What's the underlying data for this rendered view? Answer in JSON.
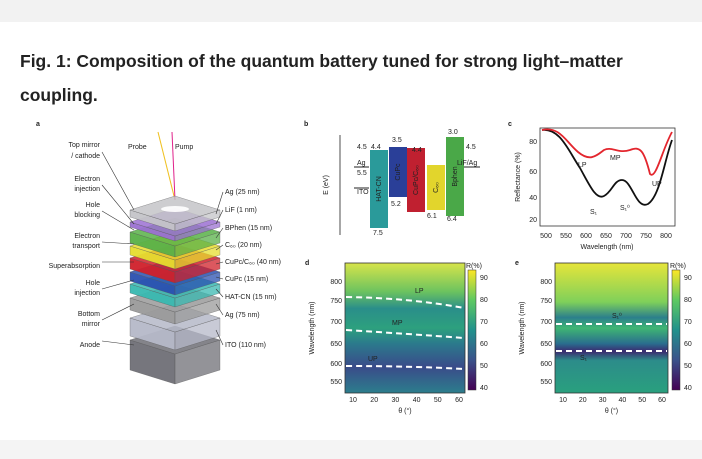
{
  "caption": {
    "title": "Fig. 1: Composition of the quantum battery tuned for strong light–matter coupling."
  },
  "panel_a": {
    "label": "a",
    "probe": "Probe",
    "pump": "Pump",
    "left_labels": [
      [
        "Top mirror",
        "/ cathode"
      ],
      [
        "Electron",
        "injection"
      ],
      [
        "Hole",
        "blocking"
      ],
      [
        "Electron",
        "transport"
      ],
      [
        "Superabsorption"
      ],
      [
        "Hole",
        "injection"
      ],
      [
        "Bottom",
        "mirror"
      ],
      [
        "Anode"
      ]
    ],
    "right_labels": [
      "Ag (25 nm)",
      "LiF (1 nm)",
      "BPhen (15 nm)",
      "C₆₀ (20 nm)",
      "CuPc/C₆₀ (40 nm)",
      "CuPc (15 nm)",
      "HAT-CN (15 nm)",
      "Ag (75 nm)",
      "ITO (110 nm)"
    ]
  },
  "panel_b": {
    "label": "b",
    "axis": "E (eV)",
    "electrodes": [
      "Ag",
      "ITO",
      "LiF/Ag"
    ],
    "layers": [
      "HAT-CN",
      "CuPc",
      "CuPc/C₆₀",
      "C₆₀",
      "Bphen"
    ],
    "levels": [
      "4.5",
      "4.4",
      "3.5",
      "4.4",
      "3.0",
      "4.5",
      "5.5",
      "5.2",
      "6.1",
      "6.4",
      "7.5"
    ]
  },
  "panel_c": {
    "label": "c",
    "ylabel": "Reflectance (%)",
    "xlabel": "Wavelength (nm)",
    "yticks": [
      20,
      40,
      60,
      80
    ],
    "xticks": [
      500,
      550,
      600,
      650,
      700,
      750,
      800
    ],
    "annotations": [
      "LP",
      "MP",
      "UP",
      "S₁",
      "S₁⁰"
    ]
  },
  "panel_d": {
    "label": "d",
    "ylabel": "Wavelength (nm)",
    "xlabel": "θ (°)",
    "yticks": [
      800,
      750,
      700,
      650,
      600,
      550
    ],
    "xticks": [
      10,
      20,
      30,
      40,
      50,
      60
    ],
    "colorbar_label": "R(%)",
    "colorbar_ticks": [
      90,
      80,
      70,
      60,
      50,
      40
    ],
    "annotations": [
      "LP",
      "MP",
      "UP"
    ]
  },
  "panel_e": {
    "label": "e",
    "ylabel": "Wavelength (nm)",
    "xlabel": "θ (°)",
    "yticks": [
      800,
      750,
      700,
      650,
      600,
      550
    ],
    "xticks": [
      10,
      20,
      30,
      40,
      50,
      60
    ],
    "colorbar_label": "R(%)",
    "colorbar_ticks": [
      90,
      80,
      70,
      60,
      50,
      40
    ],
    "annotations": [
      "S₁⁰",
      "S₁"
    ]
  }
}
